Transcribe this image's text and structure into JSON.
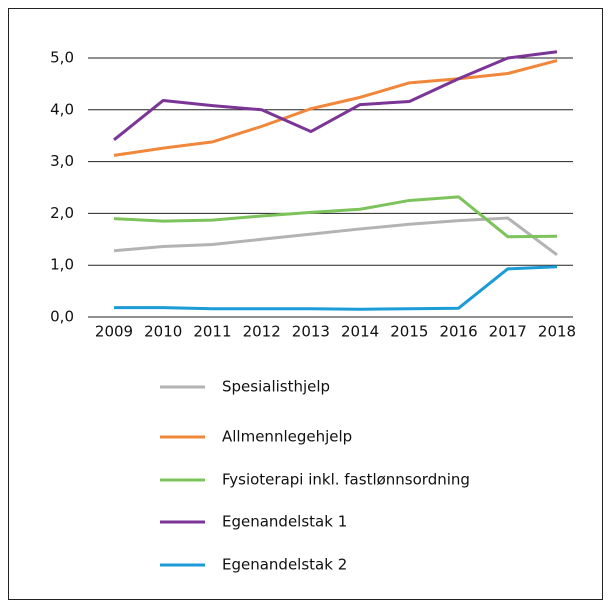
{
  "chart_data": {
    "type": "line",
    "categories": [
      "2009",
      "2010",
      "2011",
      "2012",
      "2013",
      "2014",
      "2015",
      "2016",
      "2017",
      "2018"
    ],
    "series": [
      {
        "name": "Spesialisthjelp",
        "color": "#b3b3b3",
        "values": [
          1.28,
          1.36,
          1.4,
          1.5,
          1.6,
          1.7,
          1.79,
          1.86,
          1.91,
          1.2
        ]
      },
      {
        "name": "Allmennlegehjelp",
        "color": "#f0873a",
        "values": [
          3.12,
          3.26,
          3.38,
          3.68,
          4.02,
          4.24,
          4.52,
          4.6,
          4.7,
          4.95
        ]
      },
      {
        "name": "Fysioterapi inkl. fastlønnsordning",
        "color": "#7dc35b",
        "values": [
          1.9,
          1.85,
          1.87,
          1.95,
          2.02,
          2.08,
          2.25,
          2.32,
          1.55,
          1.56
        ]
      },
      {
        "name": "Egenandelstak 1",
        "color": "#7b3596",
        "values": [
          3.42,
          4.18,
          4.08,
          4.0,
          3.58,
          4.1,
          4.16,
          4.6,
          5.0,
          5.12
        ]
      },
      {
        "name": "Egenandelstak 2",
        "color": "#1b9bd7",
        "values": [
          0.18,
          0.18,
          0.16,
          0.16,
          0.16,
          0.15,
          0.16,
          0.17,
          0.93,
          0.97
        ]
      }
    ],
    "ylim": [
      0,
      5.3
    ],
    "yticks": [
      {
        "value": 0,
        "label": "0,0"
      },
      {
        "value": 1,
        "label": "1,0"
      },
      {
        "value": 2,
        "label": "2,0"
      },
      {
        "value": 3,
        "label": "3,0"
      },
      {
        "value": 4,
        "label": "4,0"
      },
      {
        "value": 5,
        "label": "5,0"
      }
    ],
    "grid": true
  }
}
